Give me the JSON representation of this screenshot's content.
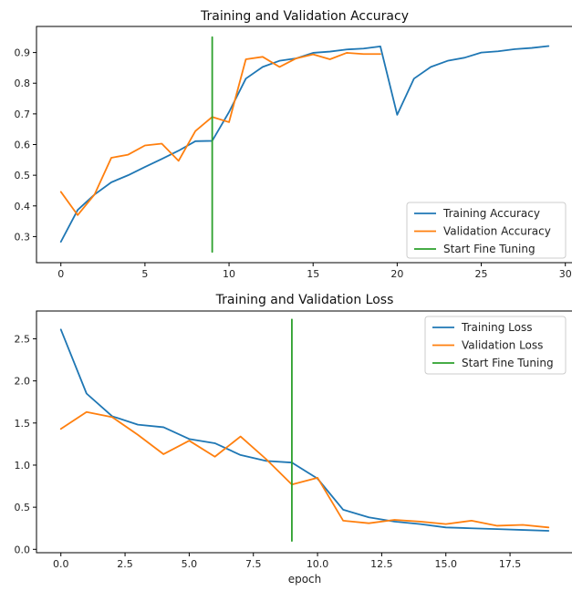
{
  "chart_data": [
    {
      "type": "line",
      "title": "Training and Validation Accuracy",
      "xlabel": "",
      "ylabel": "",
      "xlim": [
        -1.45,
        30.45
      ],
      "ylim": [
        0.215,
        0.985
      ],
      "xticks": [
        0,
        5,
        10,
        15,
        20,
        25,
        30
      ],
      "yticks": [
        0.3,
        0.4,
        0.5,
        0.6,
        0.7,
        0.8,
        0.9
      ],
      "grid": false,
      "legend": {
        "placement": "bottom-right",
        "entries": [
          "Training Accuracy",
          "Validation Accuracy",
          "Start Fine Tuning"
        ]
      },
      "series": [
        {
          "name": "Training Accuracy",
          "color": "#1f77b4",
          "x": [
            0,
            1,
            2,
            3,
            4,
            5,
            6,
            7,
            8,
            9,
            10,
            11,
            12,
            13,
            14,
            15,
            16,
            17,
            18,
            19,
            20,
            21,
            22,
            23,
            24,
            25,
            26,
            27,
            28,
            29
          ],
          "y": [
            0.283,
            0.387,
            0.437,
            0.477,
            0.5,
            0.527,
            0.553,
            0.58,
            0.611,
            0.612,
            0.706,
            0.815,
            0.853,
            0.873,
            0.881,
            0.899,
            0.903,
            0.91,
            0.913,
            0.92,
            0.697,
            0.815,
            0.853,
            0.873,
            0.883,
            0.9,
            0.904,
            0.911,
            0.915,
            0.921
          ]
        },
        {
          "name": "Validation Accuracy",
          "color": "#ff7f0e",
          "x": [
            0,
            1,
            2,
            3,
            4,
            5,
            6,
            7,
            8,
            9,
            10,
            11,
            12,
            13,
            14,
            15,
            16,
            17,
            18,
            19
          ],
          "y": [
            0.446,
            0.37,
            0.437,
            0.557,
            0.567,
            0.597,
            0.603,
            0.547,
            0.644,
            0.69,
            0.673,
            0.878,
            0.886,
            0.853,
            0.881,
            0.894,
            0.878,
            0.899,
            0.895,
            0.895
          ]
        },
        {
          "name": "Start Fine Tuning",
          "color": "#2ca02c",
          "x": [
            9,
            9
          ],
          "y": [
            0.25,
            0.95
          ]
        }
      ]
    },
    {
      "type": "line",
      "title": "Training and Validation Loss",
      "xlabel": "epoch",
      "ylabel": "",
      "xlim": [
        -0.95,
        19.95
      ],
      "ylim": [
        -0.04,
        2.83
      ],
      "xticks": [
        0.0,
        2.5,
        5.0,
        7.5,
        10.0,
        12.5,
        15.0,
        17.5
      ],
      "xtick_labels": [
        "0.0",
        "2.5",
        "5.0",
        "7.5",
        "10.0",
        "12.5",
        "15.0",
        "17.5"
      ],
      "yticks": [
        0.0,
        0.5,
        1.0,
        1.5,
        2.0,
        2.5
      ],
      "ytick_labels": [
        "0.0",
        "0.5",
        "1.0",
        "1.5",
        "2.0",
        "2.5"
      ],
      "grid": false,
      "legend": {
        "placement": "top-right",
        "entries": [
          "Training Loss",
          "Validation Loss",
          "Start Fine Tuning"
        ]
      },
      "series": [
        {
          "name": "Training Loss",
          "color": "#1f77b4",
          "x": [
            0,
            1,
            2,
            3,
            4,
            5,
            6,
            7,
            8,
            9,
            10,
            11,
            12,
            13,
            14,
            15,
            16,
            17,
            18,
            19
          ],
          "y": [
            2.61,
            1.85,
            1.58,
            1.48,
            1.45,
            1.31,
            1.26,
            1.12,
            1.05,
            1.03,
            0.84,
            0.47,
            0.38,
            0.33,
            0.3,
            0.26,
            0.25,
            0.24,
            0.23,
            0.22
          ]
        },
        {
          "name": "Validation Loss",
          "color": "#ff7f0e",
          "x": [
            0,
            1,
            2,
            3,
            4,
            5,
            6,
            7,
            8,
            9,
            10,
            11,
            12,
            13,
            14,
            15,
            16,
            17,
            18,
            19
          ],
          "y": [
            1.43,
            1.63,
            1.57,
            1.36,
            1.13,
            1.29,
            1.1,
            1.34,
            1.07,
            0.77,
            0.85,
            0.34,
            0.31,
            0.35,
            0.33,
            0.3,
            0.34,
            0.28,
            0.29,
            0.26
          ]
        },
        {
          "name": "Start Fine Tuning",
          "color": "#2ca02c",
          "x": [
            9,
            9
          ],
          "y": [
            0.1,
            2.73
          ]
        }
      ]
    }
  ]
}
